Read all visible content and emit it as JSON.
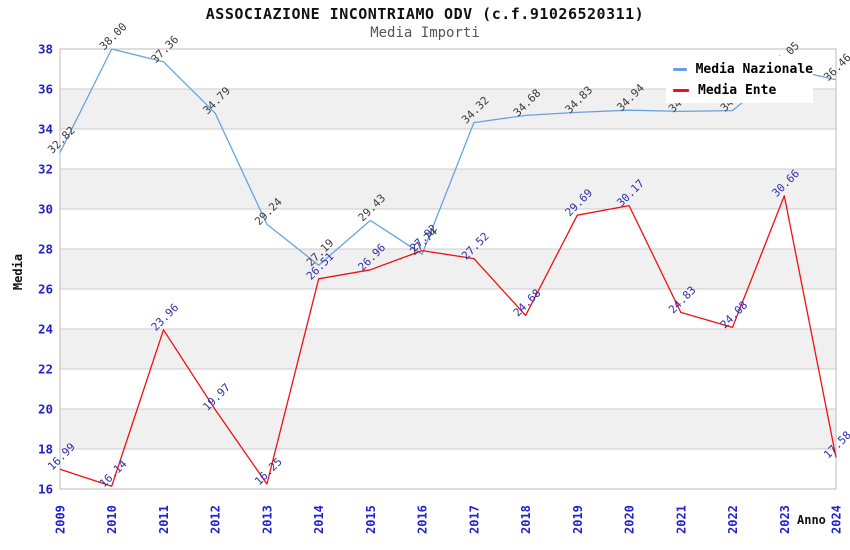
{
  "header": {
    "title": "ASSOCIAZIONE INCONTRIAMO ODV (c.f.91026520311)",
    "subtitle": "Media Importi"
  },
  "legend": {
    "items": [
      {
        "label": "Media Nazionale",
        "color": "#69A3DF"
      },
      {
        "label": "Media Ente",
        "color": "#EE1111"
      }
    ]
  },
  "colors": {
    "axis_text_blue": "#2222CC",
    "grid_line": "#CCCCCC",
    "plot_border": "#BBBBBB",
    "band_gray": "#F0F0F0",
    "axis_title": "#111111",
    "nazionale_label_text": "#3C3C3C",
    "ente_label_text": "#2E2EAE"
  },
  "chart_data": {
    "type": "line",
    "title": "ASSOCIAZIONE INCONTRIAMO ODV (c.f.91026520311)",
    "subtitle": "Media Importi",
    "xlabel": "Anno",
    "ylabel": "Media",
    "x": [
      2009,
      2010,
      2011,
      2012,
      2013,
      2014,
      2015,
      2016,
      2017,
      2018,
      2019,
      2020,
      2021,
      2022,
      2023,
      2024
    ],
    "ylim": [
      16,
      38
    ],
    "yticks": [
      16,
      18,
      20,
      22,
      24,
      26,
      28,
      30,
      32,
      34,
      36,
      38
    ],
    "grid": "horizontal gridlines with alternating gray bands",
    "legend_position": "top-right",
    "series": [
      {
        "name": "Media Nazionale",
        "color": "#69A3DF",
        "label_color": "#3C3C3C",
        "values": [
          32.82,
          38.0,
          37.36,
          34.79,
          29.24,
          27.19,
          29.43,
          27.74,
          34.32,
          34.68,
          34.83,
          34.94,
          34.88,
          34.92,
          37.05,
          36.46
        ]
      },
      {
        "name": "Media Ente",
        "color": "#EE1111",
        "label_color": "#2E2EAE",
        "values": [
          16.99,
          16.14,
          23.96,
          19.97,
          16.25,
          26.51,
          26.96,
          27.92,
          27.52,
          24.68,
          29.69,
          30.17,
          24.83,
          24.08,
          30.66,
          17.58
        ]
      }
    ]
  }
}
